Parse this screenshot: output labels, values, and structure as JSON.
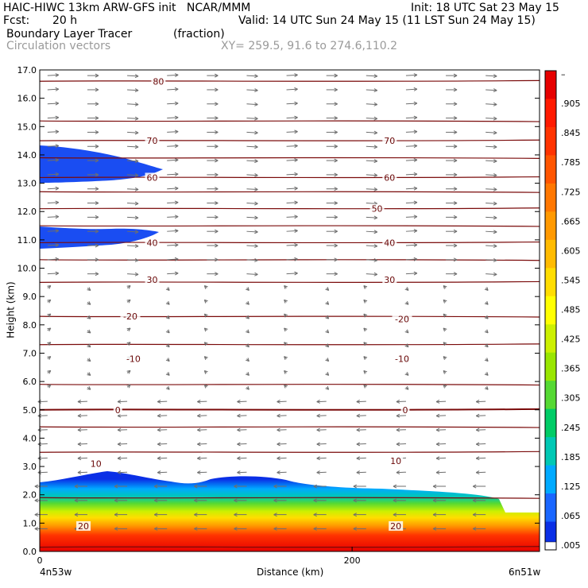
{
  "header": {
    "model_line": "HAIC-HIWC 13km ARW-GFS init   NCAR/MMM",
    "init_line": "Init: 18 UTC Sat 23 May 15",
    "fcst_label": "Fcst:",
    "fcst_value": "20 h",
    "valid_line": "Valid: 14 UTC Sun 24 May 15 (11 LST Sun 24 May 15)",
    "field_name": "Boundary Layer Tracer",
    "field_units": "(fraction)",
    "vector_label": "Circulation vectors",
    "xy_line": "XY= 259.5, 91.6 to 274.6,110.2"
  },
  "chart_data": {
    "type": "heatmap",
    "ylabel": "Height (km)",
    "xlabel": "Distance (km)",
    "ylim": [
      0,
      17
    ],
    "xlim": [
      0,
      320
    ],
    "y_ticks": [
      "0.0",
      "1.0",
      "2.0",
      "3.0",
      "4.0",
      "5.0",
      "6.0",
      "7.0",
      "8.0",
      "9.0",
      "10.0",
      "11.0",
      "12.0",
      "13.0",
      "14.0",
      "15.0",
      "16.0",
      "17.0"
    ],
    "x_ticks": [
      "0",
      "200"
    ],
    "x_endpoint_left": "4n53w",
    "x_endpoint_right": "6n51w",
    "colorbar_labels": [
      "–",
      ".905",
      ".845",
      ".785",
      ".725",
      ".665",
      ".605",
      ".545",
      ".485",
      ".425",
      ".365",
      ".305",
      ".245",
      ".185",
      ".125",
      ".065",
      ".005"
    ],
    "colorbar_colors": [
      "#e60000",
      "#ff1a00",
      "#ff3300",
      "#ff5500",
      "#ff7700",
      "#ff9900",
      "#ffbb00",
      "#ffdd00",
      "#ffff00",
      "#ccf000",
      "#99e600",
      "#55d933",
      "#00cc66",
      "#00c8b4",
      "#00aaff",
      "#1a66ff",
      "#0a2fe6"
    ],
    "contour_labels": [
      {
        "text": "80",
        "x": 76,
        "y": 16.6
      },
      {
        "text": "70",
        "x": 72,
        "y": 14.5
      },
      {
        "text": "70",
        "x": 224,
        "y": 14.5
      },
      {
        "text": "60",
        "x": 72,
        "y": 13.2
      },
      {
        "text": "60",
        "x": 224,
        "y": 13.2
      },
      {
        "text": "50",
        "x": 216,
        "y": 12.1
      },
      {
        "text": "40",
        "x": 72,
        "y": 10.9
      },
      {
        "text": "40",
        "x": 224,
        "y": 10.9
      },
      {
        "text": "30",
        "x": 72,
        "y": 9.6
      },
      {
        "text": "30",
        "x": 224,
        "y": 9.6
      },
      {
        "text": "-20",
        "x": 58,
        "y": 8.3
      },
      {
        "text": "-20",
        "x": 232,
        "y": 8.2
      },
      {
        "text": "-10",
        "x": 60,
        "y": 6.8
      },
      {
        "text": "-10",
        "x": 232,
        "y": 6.8
      },
      {
        "text": "0",
        "x": 50,
        "y": 5.0
      },
      {
        "text": "0",
        "x": 234,
        "y": 5.0
      },
      {
        "text": "10",
        "x": 36,
        "y": 3.1
      },
      {
        "text": "10",
        "x": 228,
        "y": 3.2
      },
      {
        "text": "20",
        "x": 28,
        "y": 0.9
      },
      {
        "text": "20",
        "x": 228,
        "y": 0.9
      }
    ]
  }
}
